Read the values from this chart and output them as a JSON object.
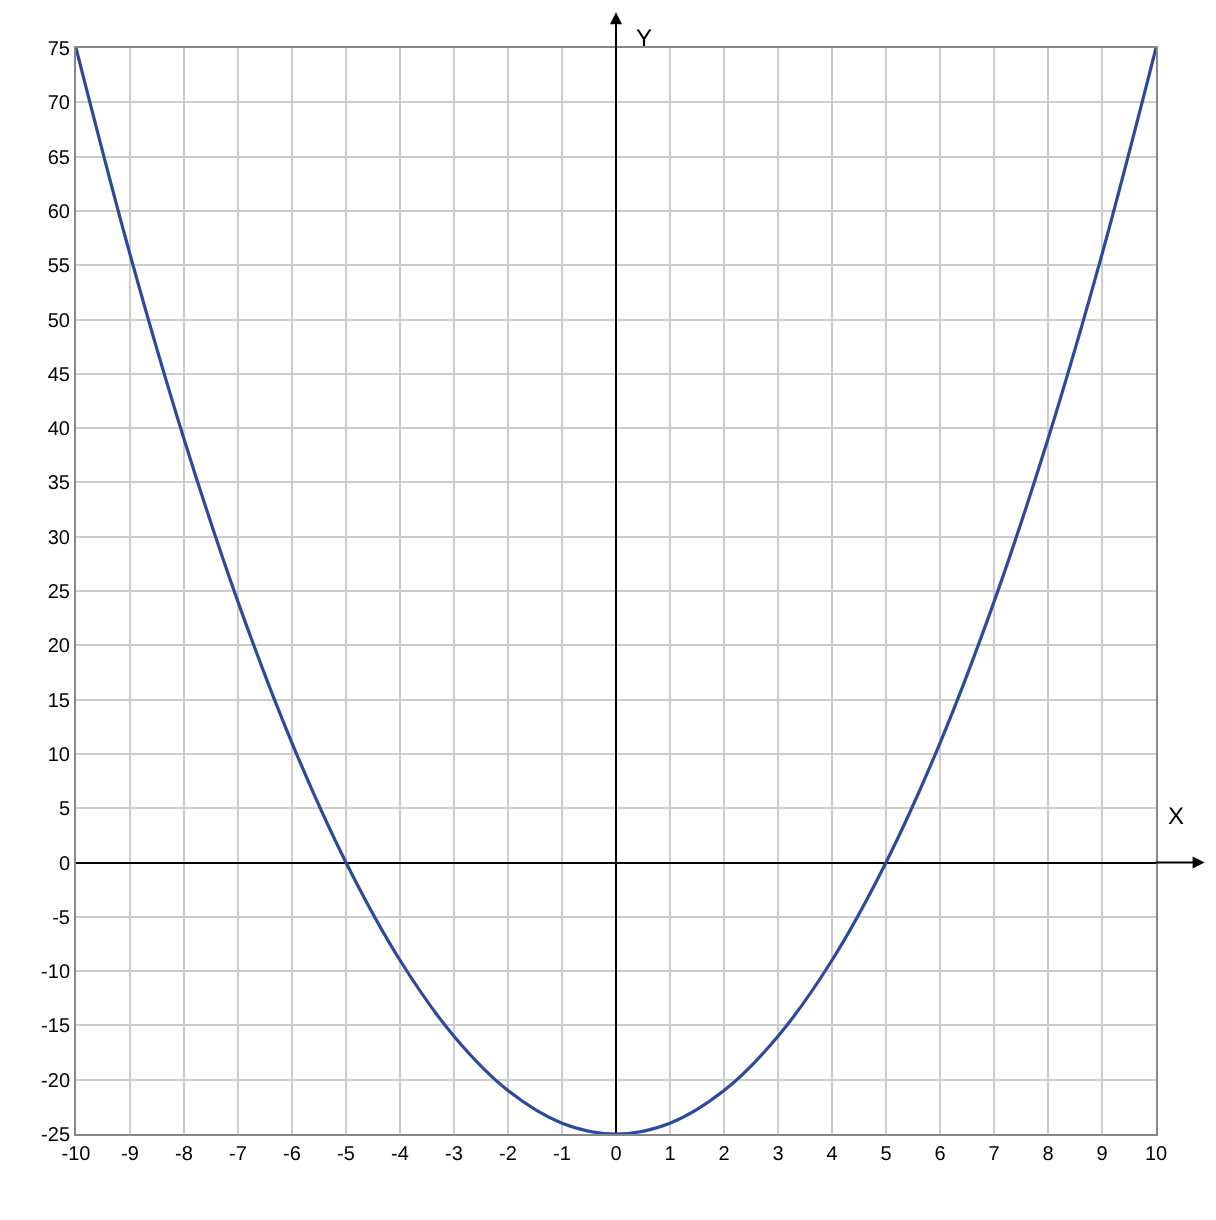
{
  "chart_data": {
    "type": "line",
    "xlabel": "X",
    "ylabel": "Y",
    "x": [
      -10,
      -9,
      -8,
      -7,
      -6,
      -5,
      -4,
      -3,
      -2,
      -1,
      0,
      1,
      2,
      3,
      4,
      5,
      6,
      7,
      8,
      9,
      10
    ],
    "series": [
      {
        "color": "#2a4b9b",
        "values": [
          75,
          56,
          39,
          24,
          11,
          0,
          -9,
          -16,
          -21,
          -24,
          -25,
          -24,
          -21,
          -16,
          -9,
          0,
          11,
          24,
          39,
          56,
          75
        ]
      }
    ],
    "xlim": [
      -10,
      10
    ],
    "ylim": [
      -25,
      75
    ],
    "xticks": [
      -10,
      -9,
      -8,
      -7,
      -6,
      -5,
      -4,
      -3,
      -2,
      -1,
      0,
      1,
      2,
      3,
      4,
      5,
      6,
      7,
      8,
      9,
      10
    ],
    "yticks": [
      -25,
      -20,
      -15,
      -10,
      -5,
      0,
      5,
      10,
      15,
      20,
      25,
      30,
      35,
      40,
      45,
      50,
      55,
      60,
      65,
      70,
      75
    ],
    "grid": true,
    "line_style": "solid"
  }
}
